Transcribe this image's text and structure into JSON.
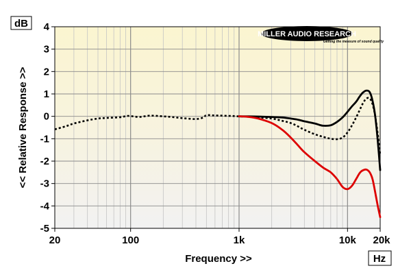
{
  "chart_data": {
    "type": "line",
    "xlabel": "Frequency >>",
    "ylabel": "<< Relative Response >>",
    "y_unit": "dB",
    "x_unit": "Hz",
    "xscale": "log",
    "xlim": [
      20,
      20000
    ],
    "ylim": [
      -5,
      4
    ],
    "grid": true,
    "x_ticks": [
      {
        "value": 20,
        "label": "20"
      },
      {
        "value": 100,
        "label": "100"
      },
      {
        "value": 1000,
        "label": "1k"
      },
      {
        "value": 10000,
        "label": "10k"
      },
      {
        "value": 20000,
        "label": "20k"
      }
    ],
    "y_ticks": [
      4,
      3,
      2,
      1,
      0,
      -1,
      -2,
      -3,
      -4,
      -5
    ],
    "series": [
      {
        "style": "dotted",
        "color": "#000000",
        "points": [
          [
            20,
            -0.58
          ],
          [
            25,
            -0.45
          ],
          [
            30,
            -0.32
          ],
          [
            40,
            -0.18
          ],
          [
            50,
            -0.1
          ],
          [
            60,
            -0.07
          ],
          [
            80,
            -0.04
          ],
          [
            95,
            0.02
          ],
          [
            120,
            -0.03
          ],
          [
            150,
            0.03
          ],
          [
            200,
            0.0
          ],
          [
            250,
            -0.04
          ],
          [
            300,
            -0.08
          ],
          [
            400,
            -0.12
          ],
          [
            470,
            -0.05
          ],
          [
            500,
            0.05
          ],
          [
            600,
            0.04
          ],
          [
            800,
            0.02
          ],
          [
            1000,
            0.0
          ],
          [
            1500,
            -0.05
          ],
          [
            2000,
            -0.1
          ],
          [
            2500,
            -0.2
          ],
          [
            3000,
            -0.3
          ],
          [
            3500,
            -0.45
          ],
          [
            4000,
            -0.6
          ],
          [
            5000,
            -0.8
          ],
          [
            6000,
            -0.92
          ],
          [
            7000,
            -1.0
          ],
          [
            8000,
            -1.02
          ],
          [
            9000,
            -0.95
          ],
          [
            10000,
            -0.72
          ],
          [
            11000,
            -0.4
          ],
          [
            12000,
            -0.05
          ],
          [
            13000,
            0.3
          ],
          [
            14000,
            0.62
          ],
          [
            15000,
            0.8
          ],
          [
            16000,
            0.8
          ],
          [
            17000,
            0.55
          ],
          [
            18000,
            0.0
          ],
          [
            19000,
            -0.8
          ],
          [
            20000,
            -1.7
          ]
        ]
      },
      {
        "style": "solid",
        "color": "#000000",
        "points": [
          [
            1000,
            0.0
          ],
          [
            1500,
            -0.01
          ],
          [
            2000,
            -0.03
          ],
          [
            2500,
            -0.05
          ],
          [
            3000,
            -0.1
          ],
          [
            3500,
            -0.15
          ],
          [
            4000,
            -0.22
          ],
          [
            5000,
            -0.32
          ],
          [
            5500,
            -0.38
          ],
          [
            6000,
            -0.42
          ],
          [
            7000,
            -0.4
          ],
          [
            8000,
            -0.25
          ],
          [
            9000,
            -0.05
          ],
          [
            10000,
            0.2
          ],
          [
            11000,
            0.45
          ],
          [
            12000,
            0.65
          ],
          [
            13000,
            0.9
          ],
          [
            14000,
            1.08
          ],
          [
            15000,
            1.15
          ],
          [
            16000,
            1.08
          ],
          [
            17000,
            0.7
          ],
          [
            18000,
            0.0
          ],
          [
            19000,
            -1.1
          ],
          [
            20000,
            -2.4
          ]
        ]
      },
      {
        "style": "solid",
        "color": "#dd0000",
        "points": [
          [
            1000,
            0.0
          ],
          [
            1200,
            -0.02
          ],
          [
            1500,
            -0.1
          ],
          [
            2000,
            -0.3
          ],
          [
            2500,
            -0.6
          ],
          [
            3000,
            -0.95
          ],
          [
            3500,
            -1.3
          ],
          [
            4000,
            -1.6
          ],
          [
            5000,
            -2.0
          ],
          [
            6000,
            -2.3
          ],
          [
            7000,
            -2.5
          ],
          [
            8000,
            -2.8
          ],
          [
            9000,
            -3.15
          ],
          [
            10000,
            -3.25
          ],
          [
            11000,
            -3.1
          ],
          [
            12000,
            -2.8
          ],
          [
            13000,
            -2.52
          ],
          [
            14000,
            -2.4
          ],
          [
            15000,
            -2.38
          ],
          [
            16000,
            -2.5
          ],
          [
            17000,
            -2.8
          ],
          [
            18000,
            -3.4
          ],
          [
            19000,
            -4.0
          ],
          [
            20000,
            -4.5
          ]
        ]
      }
    ]
  },
  "logo": {
    "brand": "MILLER AUDIO RESEARCH",
    "tagline": "Getting the measure of sound quality"
  }
}
